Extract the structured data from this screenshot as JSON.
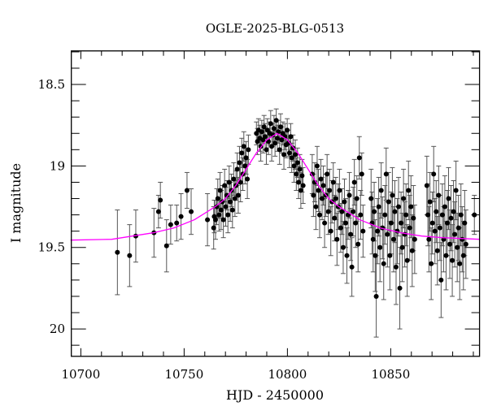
{
  "chart_data": {
    "type": "scatter",
    "title": "OGLE-2025-BLG-0513",
    "xlabel": "HJD - 2450000",
    "ylabel": "I magnitude",
    "xlim": [
      10695.4,
      10893
    ],
    "ylim": [
      20.168,
      18.294
    ],
    "y_inverted": true,
    "grid": false,
    "x_ticks": [
      "10700",
      "10750",
      "10800",
      "10850"
    ],
    "y_ticks": [
      "18.5",
      "19",
      "19.5",
      "20"
    ],
    "x_minor_step": 10,
    "y_minor_step": 0.1,
    "colors": {
      "points": "#000000",
      "error_bars": "#555555",
      "model": "#ff00ff"
    },
    "series": [
      {
        "kind": "points-with-errors",
        "columns": [
          "hjd",
          "mag",
          "err"
        ],
        "points": [
          [
            10717.7,
            19.53,
            0.26
          ],
          [
            10723.6,
            19.55,
            0.19
          ],
          [
            10726.6,
            19.43,
            0.16
          ],
          [
            10735.4,
            19.41,
            0.15
          ],
          [
            10737.6,
            19.28,
            0.1
          ],
          [
            10738.5,
            19.21,
            0.11
          ],
          [
            10741.5,
            19.49,
            0.16
          ],
          [
            10743.5,
            19.36,
            0.12
          ],
          [
            10746.4,
            19.35,
            0.11
          ],
          [
            10748.5,
            19.31,
            0.14
          ],
          [
            10751.4,
            19.15,
            0.11
          ],
          [
            10753.4,
            19.28,
            0.14
          ],
          [
            10761.3,
            19.33,
            0.16
          ],
          [
            10764.3,
            19.38,
            0.13
          ],
          [
            10764.6,
            19.31,
            0.1
          ],
          [
            10765.2,
            19.33,
            0.12
          ],
          [
            10765.8,
            19.25,
            0.11
          ],
          [
            10766.3,
            19.2,
            0.12
          ],
          [
            10766.9,
            19.3,
            0.1
          ],
          [
            10767.4,
            19.15,
            0.11
          ],
          [
            10767.9,
            19.27,
            0.12
          ],
          [
            10768.5,
            19.22,
            0.1
          ],
          [
            10769.0,
            19.33,
            0.11
          ],
          [
            10769.6,
            19.12,
            0.1
          ],
          [
            10770.1,
            19.25,
            0.12
          ],
          [
            10770.7,
            19.18,
            0.09
          ],
          [
            10771.2,
            19.3,
            0.11
          ],
          [
            10771.8,
            19.1,
            0.1
          ],
          [
            10772.3,
            19.22,
            0.12
          ],
          [
            10772.9,
            19.15,
            0.1
          ],
          [
            10773.4,
            19.27,
            0.11
          ],
          [
            10774.0,
            19.08,
            0.1
          ],
          [
            10774.6,
            19.2,
            0.11
          ],
          [
            10775.1,
            19.12,
            0.09
          ],
          [
            10775.7,
            19.02,
            0.1
          ],
          [
            10776.2,
            19.18,
            0.11
          ],
          [
            10776.8,
            18.98,
            0.1
          ],
          [
            10777.3,
            19.1,
            0.12
          ],
          [
            10777.9,
            18.92,
            0.09
          ],
          [
            10778.4,
            19.05,
            0.1
          ],
          [
            10778.9,
            18.88,
            0.09
          ],
          [
            10779.5,
            19.0,
            0.11
          ],
          [
            10780.0,
            18.95,
            0.1
          ],
          [
            10780.6,
            19.08,
            0.12
          ],
          [
            10781.1,
            18.9,
            0.09
          ],
          [
            10785.0,
            18.8,
            0.07
          ],
          [
            10785.5,
            18.85,
            0.08
          ],
          [
            10786.0,
            18.78,
            0.07
          ],
          [
            10786.6,
            18.83,
            0.08
          ],
          [
            10787.1,
            18.88,
            0.09
          ],
          [
            10787.6,
            18.79,
            0.07
          ],
          [
            10788.2,
            18.84,
            0.08
          ],
          [
            10788.7,
            18.76,
            0.07
          ],
          [
            10789.2,
            18.82,
            0.08
          ],
          [
            10789.8,
            18.9,
            0.09
          ],
          [
            10790.3,
            18.78,
            0.07
          ],
          [
            10790.8,
            18.85,
            0.08
          ],
          [
            10791.4,
            18.8,
            0.07
          ],
          [
            10791.9,
            18.74,
            0.08
          ],
          [
            10792.4,
            18.88,
            0.09
          ],
          [
            10793.0,
            18.81,
            0.07
          ],
          [
            10793.5,
            18.77,
            0.08
          ],
          [
            10794.0,
            18.86,
            0.08
          ],
          [
            10794.6,
            18.72,
            0.07
          ],
          [
            10795.1,
            18.83,
            0.08
          ],
          [
            10795.6,
            18.79,
            0.07
          ],
          [
            10796.2,
            18.9,
            0.09
          ],
          [
            10796.7,
            18.76,
            0.08
          ],
          [
            10797.2,
            18.84,
            0.08
          ],
          [
            10797.8,
            18.8,
            0.07
          ],
          [
            10798.3,
            18.93,
            0.09
          ],
          [
            10798.8,
            18.82,
            0.08
          ],
          [
            10799.4,
            18.87,
            0.08
          ],
          [
            10799.9,
            18.78,
            0.07
          ],
          [
            10800.5,
            18.86,
            0.08
          ],
          [
            10801.0,
            18.92,
            0.09
          ],
          [
            10801.6,
            18.82,
            0.08
          ],
          [
            10802.1,
            18.95,
            0.09
          ],
          [
            10802.7,
            18.89,
            0.08
          ],
          [
            10803.2,
            19.0,
            0.1
          ],
          [
            10803.8,
            18.93,
            0.09
          ],
          [
            10804.3,
            19.05,
            0.1
          ],
          [
            10804.9,
            18.98,
            0.09
          ],
          [
            10805.4,
            19.1,
            0.1
          ],
          [
            10806.0,
            19.02,
            0.09
          ],
          [
            10806.5,
            19.15,
            0.11
          ],
          [
            10807.1,
            19.06,
            0.1
          ],
          [
            10807.6,
            19.12,
            0.11
          ],
          [
            10812.0,
            19.05,
            0.12
          ],
          [
            10812.6,
            19.18,
            0.13
          ],
          [
            10813.2,
            19.1,
            0.12
          ],
          [
            10813.8,
            19.25,
            0.14
          ],
          [
            10814.4,
            19.0,
            0.12
          ],
          [
            10815.0,
            19.15,
            0.13
          ],
          [
            10815.6,
            19.3,
            0.14
          ],
          [
            10816.2,
            19.08,
            0.12
          ],
          [
            10816.8,
            19.2,
            0.13
          ],
          [
            10817.4,
            19.12,
            0.12
          ],
          [
            10818.0,
            19.35,
            0.15
          ],
          [
            10818.6,
            19.18,
            0.13
          ],
          [
            10819.2,
            19.05,
            0.12
          ],
          [
            10819.8,
            19.28,
            0.14
          ],
          [
            10820.4,
            19.15,
            0.13
          ],
          [
            10821.0,
            19.4,
            0.15
          ],
          [
            10821.6,
            19.22,
            0.13
          ],
          [
            10822.2,
            19.1,
            0.12
          ],
          [
            10822.8,
            19.32,
            0.14
          ],
          [
            10823.4,
            19.2,
            0.13
          ],
          [
            10824.0,
            19.45,
            0.16
          ],
          [
            10824.6,
            19.25,
            0.14
          ],
          [
            10825.2,
            19.15,
            0.13
          ],
          [
            10825.8,
            19.38,
            0.15
          ],
          [
            10826.4,
            19.28,
            0.14
          ],
          [
            10827.0,
            19.5,
            0.16
          ],
          [
            10827.6,
            19.22,
            0.14
          ],
          [
            10828.2,
            19.35,
            0.15
          ],
          [
            10828.8,
            19.55,
            0.17
          ],
          [
            10829.4,
            19.3,
            0.15
          ],
          [
            10830.0,
            19.18,
            0.14
          ],
          [
            10830.6,
            19.42,
            0.16
          ],
          [
            10831.2,
            19.62,
            0.18
          ],
          [
            10831.8,
            19.28,
            0.15
          ],
          [
            10832.4,
            19.1,
            0.14
          ],
          [
            10833.0,
            19.35,
            0.15
          ],
          [
            10833.6,
            19.2,
            0.14
          ],
          [
            10834.2,
            19.48,
            0.17
          ],
          [
            10834.8,
            18.95,
            0.13
          ],
          [
            10835.4,
            19.3,
            0.15
          ],
          [
            10836.0,
            19.05,
            0.13
          ],
          [
            10836.6,
            19.4,
            0.16
          ],
          [
            10840.5,
            19.2,
            0.18
          ],
          [
            10841.0,
            19.35,
            0.19
          ],
          [
            10841.5,
            19.45,
            0.2
          ],
          [
            10842.0,
            19.28,
            0.18
          ],
          [
            10842.5,
            19.55,
            0.22
          ],
          [
            10843.0,
            19.8,
            0.25
          ],
          [
            10843.6,
            19.4,
            0.2
          ],
          [
            10844.2,
            19.25,
            0.18
          ],
          [
            10844.8,
            19.5,
            0.21
          ],
          [
            10845.4,
            19.15,
            0.17
          ],
          [
            10846.0,
            19.38,
            0.19
          ],
          [
            10846.6,
            19.6,
            0.22
          ],
          [
            10847.2,
            19.3,
            0.18
          ],
          [
            10847.8,
            19.05,
            0.16
          ],
          [
            10848.4,
            19.42,
            0.2
          ],
          [
            10849.0,
            19.22,
            0.18
          ],
          [
            10849.6,
            19.55,
            0.21
          ],
          [
            10850.2,
            19.35,
            0.19
          ],
          [
            10850.8,
            19.18,
            0.17
          ],
          [
            10851.4,
            19.45,
            0.2
          ],
          [
            10852.0,
            19.28,
            0.19
          ],
          [
            10852.6,
            19.62,
            0.23
          ],
          [
            10853.2,
            19.4,
            0.2
          ],
          [
            10853.8,
            19.25,
            0.18
          ],
          [
            10854.4,
            19.75,
            0.25
          ],
          [
            10855.0,
            19.35,
            0.19
          ],
          [
            10855.6,
            19.5,
            0.21
          ],
          [
            10856.2,
            19.2,
            0.18
          ],
          [
            10856.8,
            19.42,
            0.2
          ],
          [
            10857.4,
            19.3,
            0.19
          ],
          [
            10858.0,
            19.58,
            0.22
          ],
          [
            10858.6,
            19.15,
            0.18
          ],
          [
            10859.2,
            19.38,
            0.2
          ],
          [
            10859.8,
            19.25,
            0.19
          ],
          [
            10860.4,
            19.52,
            0.22
          ],
          [
            10861.0,
            19.32,
            0.2
          ],
          [
            10861.6,
            19.45,
            0.21
          ],
          [
            10867.5,
            19.12,
            0.18
          ],
          [
            10868.0,
            19.3,
            0.19
          ],
          [
            10868.5,
            19.45,
            0.2
          ],
          [
            10869.0,
            19.22,
            0.18
          ],
          [
            10869.6,
            19.6,
            0.22
          ],
          [
            10870.2,
            19.35,
            0.19
          ],
          [
            10870.8,
            19.05,
            0.17
          ],
          [
            10871.4,
            19.4,
            0.2
          ],
          [
            10872.0,
            19.28,
            0.19
          ],
          [
            10872.6,
            19.52,
            0.21
          ],
          [
            10873.2,
            19.18,
            0.18
          ],
          [
            10873.8,
            19.38,
            0.2
          ],
          [
            10874.4,
            19.7,
            0.23
          ],
          [
            10875.0,
            19.3,
            0.19
          ],
          [
            10875.6,
            19.45,
            0.2
          ],
          [
            10876.2,
            19.25,
            0.19
          ],
          [
            10876.8,
            19.55,
            0.21
          ],
          [
            10877.4,
            19.35,
            0.2
          ],
          [
            10878.0,
            19.2,
            0.19
          ],
          [
            10878.6,
            19.48,
            0.21
          ],
          [
            10879.2,
            19.32,
            0.2
          ],
          [
            10879.8,
            19.58,
            0.22
          ],
          [
            10880.4,
            19.28,
            0.19
          ],
          [
            10881.0,
            19.42,
            0.2
          ],
          [
            10881.6,
            19.15,
            0.18
          ],
          [
            10882.2,
            19.5,
            0.21
          ],
          [
            10882.8,
            19.38,
            0.2
          ],
          [
            10883.4,
            19.6,
            0.22
          ],
          [
            10884.0,
            19.3,
            0.19
          ],
          [
            10884.6,
            19.45,
            0.2
          ],
          [
            10885.2,
            19.55,
            0.21
          ],
          [
            10885.8,
            19.35,
            0.2
          ],
          [
            10886.4,
            19.48,
            0.21
          ],
          [
            10890.5,
            19.3,
            0.12
          ]
        ]
      },
      {
        "kind": "model-curve",
        "columns": [
          "hjd",
          "mag"
        ],
        "points": [
          [
            10695,
            19.455
          ],
          [
            10715,
            19.45
          ],
          [
            10735,
            19.41
          ],
          [
            10745,
            19.38
          ],
          [
            10755,
            19.33
          ],
          [
            10765,
            19.25
          ],
          [
            10770,
            19.2
          ],
          [
            10775,
            19.12
          ],
          [
            10780,
            19.02
          ],
          [
            10785,
            18.92
          ],
          [
            10790,
            18.84
          ],
          [
            10795,
            18.8
          ],
          [
            10800,
            18.84
          ],
          [
            10805,
            18.92
          ],
          [
            10810,
            19.02
          ],
          [
            10815,
            19.12
          ],
          [
            10820,
            19.2
          ],
          [
            10825,
            19.25
          ],
          [
            10835,
            19.33
          ],
          [
            10845,
            19.38
          ],
          [
            10855,
            19.41
          ],
          [
            10865,
            19.43
          ],
          [
            10875,
            19.44
          ],
          [
            10893,
            19.45
          ]
        ]
      }
    ]
  }
}
